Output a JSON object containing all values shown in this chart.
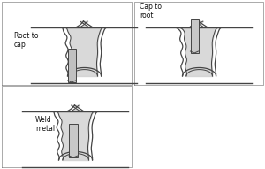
{
  "line_color": "#444444",
  "weld_fill": "#d0d0d0",
  "notch_fill": "#c0c0c0",
  "text_color": "#111111",
  "font_size": 5.5,
  "panels": [
    {
      "label": "Root to\ncap",
      "notch": "left_side"
    },
    {
      "label": "Cap to\nroot",
      "notch": "top_center"
    },
    {
      "label": "Weld\nmetal",
      "notch": "center_bottom"
    }
  ],
  "panel_borders": true,
  "border_color": "#888888"
}
